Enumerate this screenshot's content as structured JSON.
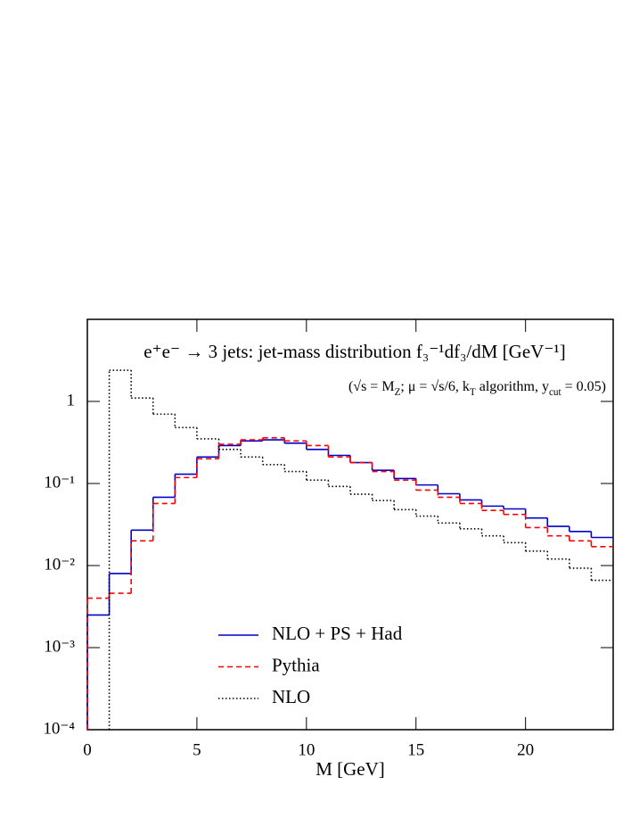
{
  "chart_data": {
    "type": "histogram",
    "title": "e⁺e⁻ → 3 jets: jet-mass distribution f₃⁻¹df₃/dM [GeV⁻¹]",
    "subtitle": "(√s = M_Z; μ = √s/6, k_T algorithm, y_cut = 0.05)",
    "x_label": "M [GeV]",
    "bins": [
      0,
      1,
      2,
      3,
      4,
      5,
      6,
      7,
      8,
      9,
      10,
      11,
      12,
      13,
      14,
      15,
      16,
      17,
      18,
      19,
      20,
      21,
      22,
      23,
      24
    ],
    "xlim": [
      0,
      24
    ],
    "xticks": [
      0,
      5,
      10,
      15,
      20
    ],
    "ylim": [
      0.0001,
      10
    ],
    "yticks": [
      {
        "value": 0.0001,
        "label": "10⁻⁴"
      },
      {
        "value": 0.001,
        "label": "10⁻³"
      },
      {
        "value": 0.01,
        "label": "10⁻²"
      },
      {
        "value": 0.1,
        "label": "10⁻¹"
      },
      1
    ],
    "y_log": true,
    "legend": "lower left",
    "series": [
      {
        "name": "NLO + PS + Had",
        "color": "#0000cc",
        "style": "solid",
        "values": [
          0.0025,
          0.008,
          0.027,
          0.068,
          0.13,
          0.21,
          0.29,
          0.33,
          0.34,
          0.31,
          0.26,
          0.22,
          0.18,
          0.145,
          0.115,
          0.096,
          0.075,
          0.063,
          0.053,
          0.049,
          0.038,
          0.03,
          0.026,
          0.022
        ]
      },
      {
        "name": "Pythia",
        "color": "#ff0000",
        "style": "dashed",
        "values": [
          0.004,
          0.0046,
          0.02,
          0.057,
          0.118,
          0.2,
          0.3,
          0.34,
          0.36,
          0.33,
          0.29,
          0.21,
          0.18,
          0.14,
          0.11,
          0.083,
          0.068,
          0.057,
          0.047,
          0.042,
          0.029,
          0.023,
          0.02,
          0.017
        ]
      },
      {
        "name": "NLO",
        "color": "#000000",
        "style": "dotted",
        "values": [
          null,
          2.4,
          1.1,
          0.7,
          0.48,
          0.35,
          0.26,
          0.21,
          0.17,
          0.14,
          0.11,
          0.092,
          0.074,
          0.062,
          0.048,
          0.04,
          0.033,
          0.028,
          0.023,
          0.019,
          0.015,
          0.012,
          0.0093,
          0.0066
        ]
      }
    ]
  }
}
